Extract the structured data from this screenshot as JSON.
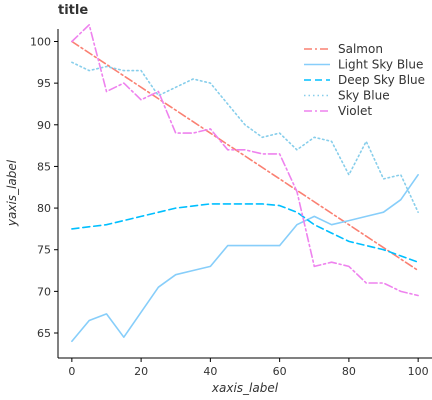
{
  "chart_data": {
    "type": "line",
    "title": "title",
    "xlabel": "xaxis_label",
    "ylabel": "yaxis_label",
    "xlim": [
      -4,
      104
    ],
    "ylim": [
      62,
      101.5
    ],
    "xticks": [
      0,
      20,
      40,
      60,
      80,
      100
    ],
    "yticks": [
      65,
      70,
      75,
      80,
      85,
      90,
      95,
      100
    ],
    "grid": false,
    "legend_position": "top-right",
    "series": [
      {
        "name": "Salmon",
        "color": "#fa8072",
        "dash": "dashdot",
        "x": [
          0,
          100
        ],
        "y": [
          100,
          72.5
        ]
      },
      {
        "name": "Light Sky Blue",
        "color": "#87cefa",
        "dash": "solid",
        "x": [
          0,
          5,
          10,
          15,
          20,
          25,
          30,
          35,
          40,
          45,
          50,
          55,
          60,
          65,
          70,
          75,
          80,
          85,
          90,
          95,
          100
        ],
        "y": [
          64,
          66.5,
          67.3,
          64.5,
          67.5,
          70.5,
          72,
          72.5,
          73,
          75.5,
          75.5,
          75.5,
          75.5,
          78,
          79,
          78,
          78.5,
          79,
          79.5,
          81,
          84
        ]
      },
      {
        "name": "Deep Sky Blue",
        "color": "#00bfff",
        "dash": "dashed",
        "x": [
          0,
          10,
          20,
          30,
          40,
          50,
          55,
          60,
          65,
          70,
          75,
          80,
          90,
          100
        ],
        "y": [
          77.5,
          78,
          79,
          80,
          80.5,
          80.5,
          80.5,
          80.3,
          79.5,
          78,
          77,
          76,
          75,
          73.5
        ]
      },
      {
        "name": "Sky Blue",
        "color": "#87ceeb",
        "dash": "dotted",
        "x": [
          0,
          5,
          10,
          15,
          20,
          25,
          30,
          35,
          40,
          45,
          50,
          55,
          60,
          65,
          70,
          75,
          80,
          85,
          90,
          95,
          100
        ],
        "y": [
          97.5,
          96.5,
          97,
          96.5,
          96.5,
          93.5,
          94.5,
          95.5,
          95,
          92.5,
          90,
          88.5,
          89,
          87,
          88.5,
          88,
          84,
          88,
          83.5,
          84,
          79.5
        ]
      },
      {
        "name": "Violet",
        "color": "#ee82ee",
        "dash": "dashdot",
        "x": [
          0,
          5,
          10,
          15,
          20,
          25,
          30,
          35,
          40,
          45,
          50,
          55,
          60,
          65,
          70,
          75,
          80,
          85,
          90,
          95,
          100
        ],
        "y": [
          100,
          102,
          94,
          95,
          93,
          94,
          89,
          89,
          89.5,
          87,
          87,
          86.5,
          86.5,
          82,
          73,
          73.5,
          73,
          71,
          71,
          70,
          69.5
        ]
      }
    ]
  }
}
